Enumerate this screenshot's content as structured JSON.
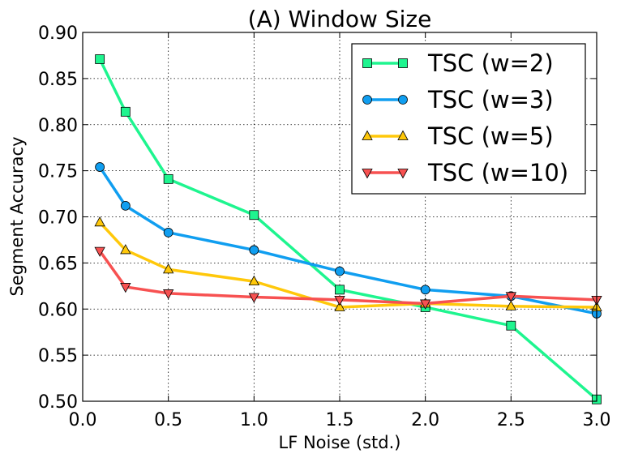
{
  "chart_data": {
    "type": "line",
    "title": "(A) Window Size",
    "xlabel": "LF Noise (std.)",
    "ylabel": "Segment Accuracy",
    "xlim": [
      0.0,
      3.0
    ],
    "ylim": [
      0.5,
      0.9
    ],
    "xticks": [
      0.0,
      0.5,
      1.0,
      1.5,
      2.0,
      2.5,
      3.0
    ],
    "xtick_labels": [
      "0.0",
      "0.5",
      "1.0",
      "1.5",
      "2.0",
      "2.5",
      "3.0"
    ],
    "yticks": [
      0.5,
      0.55,
      0.6,
      0.65,
      0.7,
      0.75,
      0.8,
      0.85,
      0.9
    ],
    "ytick_labels": [
      "0.50",
      "0.55",
      "0.60",
      "0.65",
      "0.70",
      "0.75",
      "0.80",
      "0.85",
      "0.90"
    ],
    "grid": true,
    "legend_position": "top-right",
    "x": [
      0.1,
      0.25,
      0.5,
      1.0,
      1.5,
      2.0,
      2.5,
      3.0
    ],
    "series": [
      {
        "name": "TSC (w=2)",
        "marker": "square",
        "color": "#1ef58f",
        "values": [
          0.871,
          0.814,
          0.741,
          0.702,
          0.621,
          0.602,
          0.582,
          0.502
        ]
      },
      {
        "name": "TSC (w=3)",
        "marker": "circle",
        "color": "#109ef0",
        "values": [
          0.754,
          0.712,
          0.683,
          0.664,
          0.641,
          0.621,
          0.614,
          0.595
        ]
      },
      {
        "name": "TSC (w=5)",
        "marker": "triangle-up",
        "color": "#ffc80a",
        "values": [
          0.694,
          0.664,
          0.643,
          0.63,
          0.602,
          0.606,
          0.603,
          0.602
        ]
      },
      {
        "name": "TSC (w=10)",
        "marker": "triangle-down",
        "color": "#f75151",
        "values": [
          0.663,
          0.624,
          0.617,
          0.613,
          0.61,
          0.606,
          0.614,
          0.61
        ]
      }
    ]
  }
}
